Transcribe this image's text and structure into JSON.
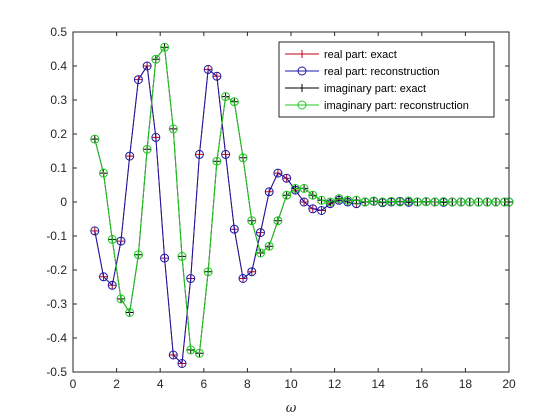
{
  "chart_data": {
    "type": "line",
    "title": "",
    "xlabel": "ω",
    "ylabel": "",
    "xlim": [
      0,
      20
    ],
    "ylim": [
      -0.5,
      0.5
    ],
    "xticks": [
      "0",
      "2",
      "4",
      "6",
      "8",
      "10",
      "12",
      "14",
      "16",
      "18",
      "20"
    ],
    "yticks": [
      "-0.5",
      "-0.4",
      "-0.3",
      "-0.2",
      "-0.1",
      "0",
      "0.1",
      "0.2",
      "0.3",
      "0.4",
      "0.5"
    ],
    "grid": false,
    "legend_position": "top-right",
    "x": [
      1.0,
      1.4,
      1.8,
      2.2,
      2.6,
      3.0,
      3.4,
      3.8,
      4.2,
      4.6,
      5.0,
      5.4,
      5.8,
      6.2,
      6.6,
      7.0,
      7.4,
      7.8,
      8.2,
      8.6,
      9.0,
      9.4,
      9.8,
      10.2,
      10.6,
      11.0,
      11.4,
      11.8,
      12.2,
      12.6,
      13.0,
      13.4,
      13.8,
      14.2,
      14.6,
      15.0,
      15.4,
      15.8,
      16.2,
      16.6,
      17.0,
      17.4,
      17.8,
      18.2,
      18.6,
      19.0,
      19.4,
      19.8,
      20.0
    ],
    "series": [
      {
        "name": "real part: exact",
        "color": "#c0001a",
        "marker": "plus",
        "values": [
          -0.085,
          -0.22,
          -0.245,
          -0.115,
          0.135,
          0.36,
          0.4,
          0.19,
          -0.165,
          -0.45,
          -0.475,
          -0.225,
          0.14,
          0.39,
          0.37,
          0.14,
          -0.08,
          -0.225,
          -0.205,
          -0.09,
          0.03,
          0.085,
          0.07,
          0.035,
          0.0,
          -0.02,
          -0.025,
          -0.005,
          0.005,
          0.0,
          -0.005,
          0.0,
          0.002,
          -0.002,
          0.0,
          0.002,
          -0.001,
          0.0,
          0.001,
          0.0,
          -0.001,
          0.0,
          0.0,
          0.0,
          0.0,
          0.0,
          0.0,
          0.0,
          0.0
        ]
      },
      {
        "name": "real part: reconstruction",
        "color": "#1a1aa8",
        "marker": "circle",
        "values": [
          -0.085,
          -0.22,
          -0.245,
          -0.115,
          0.135,
          0.36,
          0.4,
          0.19,
          -0.165,
          -0.45,
          -0.475,
          -0.225,
          0.14,
          0.39,
          0.37,
          0.14,
          -0.08,
          -0.225,
          -0.205,
          -0.09,
          0.03,
          0.085,
          0.07,
          0.035,
          0.0,
          -0.02,
          -0.025,
          -0.005,
          0.005,
          0.0,
          -0.005,
          0.0,
          0.002,
          -0.002,
          0.0,
          0.002,
          -0.001,
          0.0,
          0.001,
          0.0,
          -0.001,
          0.0,
          0.0,
          0.0,
          0.0,
          0.0,
          0.0,
          0.0,
          0.0
        ]
      },
      {
        "name": "imaginary part: exact",
        "color": "#000000",
        "marker": "plus",
        "values": [
          0.185,
          0.085,
          -0.11,
          -0.285,
          -0.325,
          -0.155,
          0.155,
          0.42,
          0.455,
          0.215,
          -0.16,
          -0.435,
          -0.445,
          -0.205,
          0.12,
          0.31,
          0.295,
          0.13,
          -0.055,
          -0.15,
          -0.13,
          -0.055,
          0.02,
          0.04,
          0.04,
          0.02,
          0.005,
          0.0,
          0.01,
          0.005,
          0.005,
          0.0,
          0.003,
          0.0,
          0.002,
          0.0,
          0.003,
          0.0,
          0.001,
          0.0,
          0.001,
          0.0,
          0.0,
          0.0,
          0.0,
          0.0,
          0.0,
          0.0,
          0.0
        ]
      },
      {
        "name": "imaginary part: reconstruction",
        "color": "#22c822",
        "marker": "circle",
        "values": [
          0.185,
          0.085,
          -0.11,
          -0.285,
          -0.325,
          -0.155,
          0.155,
          0.42,
          0.455,
          0.215,
          -0.16,
          -0.435,
          -0.445,
          -0.205,
          0.12,
          0.31,
          0.295,
          0.13,
          -0.055,
          -0.15,
          -0.13,
          -0.055,
          0.02,
          0.04,
          0.04,
          0.02,
          0.005,
          0.0,
          0.01,
          0.005,
          0.005,
          0.0,
          0.003,
          0.0,
          0.002,
          0.0,
          0.003,
          0.0,
          0.001,
          0.0,
          0.001,
          0.0,
          0.0,
          0.0,
          0.0,
          0.0,
          0.0,
          0.0,
          0.0
        ]
      }
    ]
  }
}
